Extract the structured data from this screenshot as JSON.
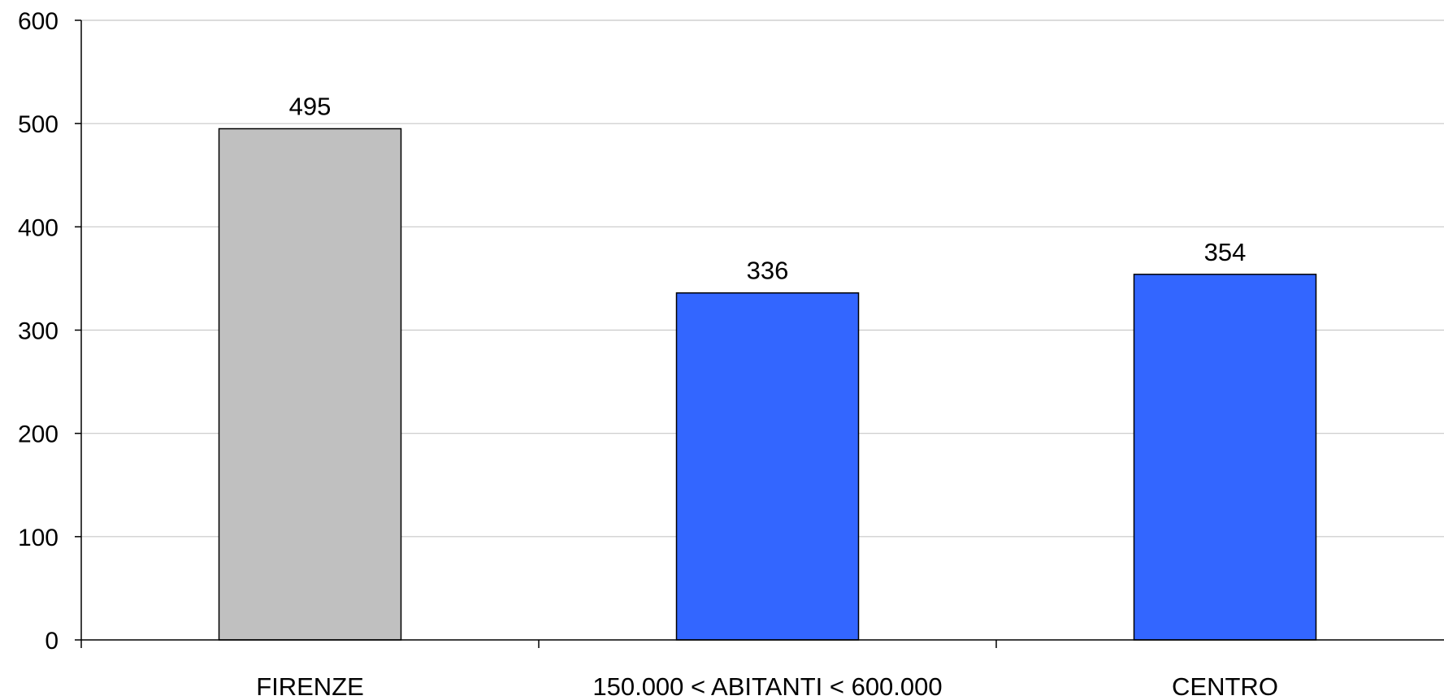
{
  "chart_data": {
    "type": "bar",
    "categories": [
      "FIRENZE",
      "150.000 < ABITANTI < 600.000",
      "CENTRO"
    ],
    "values": [
      495,
      336,
      354
    ],
    "data_labels": [
      "495",
      "336",
      "354"
    ],
    "bar_colors": [
      "#C0C0C0",
      "#3366FF",
      "#3366FF"
    ],
    "ylim": [
      0,
      600
    ],
    "yticks": [
      0,
      100,
      200,
      300,
      400,
      500,
      600
    ],
    "ytick_labels": [
      "0",
      "100",
      "200",
      "300",
      "400",
      "500",
      "600"
    ],
    "grid": true,
    "legend": "none",
    "title": "",
    "xlabel": "",
    "ylabel": ""
  },
  "colors": {
    "gridline": "#C8C8C8",
    "axis": "#000000",
    "bar_outline": "#000000"
  }
}
